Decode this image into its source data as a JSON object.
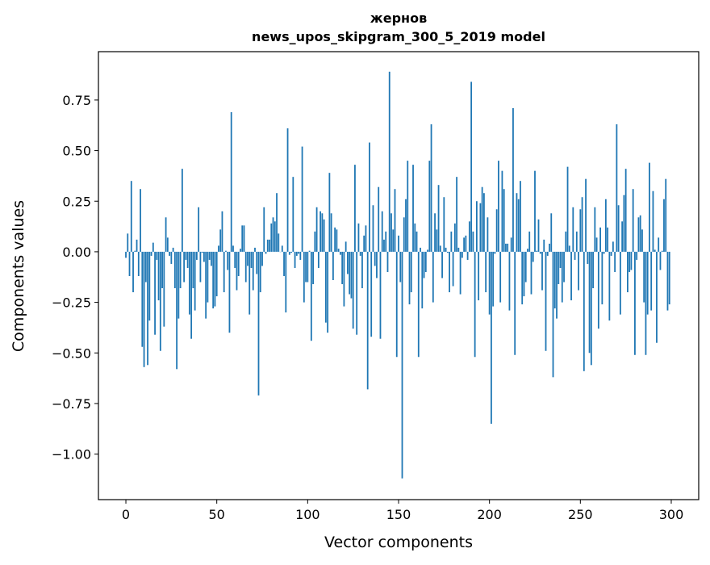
{
  "chart_data": {
    "type": "bar",
    "title": "жернов",
    "subtitle": "news_upos_skipgram_300_5_2019 model",
    "xlabel": "Vector components",
    "ylabel": "Components values",
    "xlim": [
      -15.1,
      315.1
    ],
    "ylim": [
      -1.225,
      0.989
    ],
    "xticks": [
      0,
      50,
      100,
      150,
      200,
      250,
      300
    ],
    "xtick_labels": [
      "0",
      "50",
      "100",
      "150",
      "200",
      "250",
      "300"
    ],
    "yticks": [
      0.75,
      0.5,
      0.25,
      0,
      -0.25,
      -0.5,
      -0.75,
      -1.0
    ],
    "ytick_labels": [
      "0.75",
      "0.50",
      "0.25",
      "0.00",
      "−0.25",
      "−0.50",
      "−0.75",
      "−1.00"
    ],
    "grid": false,
    "bar_color": "#1f77b4",
    "bar_width": 0.8,
    "values": [
      -0.03,
      0.09,
      -0.12,
      0.35,
      -0.2,
      0.005,
      0.06,
      -0.12,
      0.31,
      -0.47,
      -0.57,
      -0.15,
      -0.56,
      -0.34,
      -0.02,
      0.045,
      -0.41,
      -0.04,
      -0.24,
      -0.49,
      -0.18,
      -0.37,
      0.17,
      0.07,
      -0.02,
      -0.06,
      0.02,
      -0.18,
      -0.58,
      -0.33,
      -0.18,
      0.41,
      -0.15,
      -0.04,
      -0.08,
      -0.31,
      -0.43,
      -0.18,
      -0.29,
      -0.04,
      0.22,
      -0.15,
      -0.005,
      -0.05,
      -0.33,
      -0.25,
      -0.04,
      -0.07,
      -0.28,
      -0.27,
      -0.22,
      0.03,
      0.11,
      0.2,
      -0.2,
      0.005,
      -0.09,
      -0.4,
      0.69,
      0.03,
      -0.08,
      -0.19,
      -0.12,
      0.015,
      0.13,
      0.13,
      -0.15,
      -0.07,
      -0.31,
      -0.08,
      -0.19,
      0.02,
      -0.11,
      -0.71,
      -0.2,
      -0.07,
      0.22,
      -0.01,
      0.06,
      0.06,
      0.14,
      0.17,
      0.15,
      0.29,
      0.09,
      0,
      0.03,
      -0.12,
      -0.3,
      0.61,
      -0.015,
      -0.005,
      0.37,
      -0.08,
      -0.02,
      -0.01,
      -0.04,
      0.52,
      -0.25,
      -0.15,
      -0.15,
      0.005,
      -0.44,
      -0.16,
      0.1,
      0.22,
      -0.08,
      0.2,
      0.19,
      0.16,
      -0.35,
      -0.4,
      0.39,
      0.19,
      -0.14,
      0.12,
      0.11,
      0.015,
      -0.015,
      -0.16,
      -0.27,
      0.05,
      -0.11,
      -0.21,
      -0.23,
      -0.38,
      0.43,
      -0.41,
      0.14,
      -0.02,
      -0.18,
      0.08,
      0.13,
      -0.68,
      0.54,
      -0.42,
      0.23,
      -0.07,
      -0.13,
      0.32,
      -0.43,
      0.2,
      0.06,
      0.1,
      -0.1,
      0.89,
      0.19,
      0.11,
      0.31,
      -0.52,
      0.08,
      -0.15,
      -1.12,
      0.17,
      0.26,
      0.45,
      -0.26,
      -0.2,
      0.43,
      0.14,
      0.1,
      -0.52,
      0.02,
      -0.28,
      -0.13,
      -0.1,
      0.01,
      0.45,
      0.63,
      -0.25,
      0.19,
      0.11,
      0.33,
      0.03,
      -0.13,
      0.27,
      0.02,
      -0.005,
      -0.2,
      0.1,
      -0.17,
      0.14,
      0.37,
      0.02,
      -0.21,
      -0.03,
      0.07,
      0.08,
      -0.04,
      0.15,
      0.84,
      0.1,
      -0.52,
      0.25,
      -0.24,
      0.24,
      0.32,
      0.29,
      -0.2,
      0.17,
      -0.31,
      -0.85,
      -0.27,
      -0.01,
      0.21,
      0.45,
      -0.25,
      0.4,
      0.31,
      0.04,
      0.04,
      -0.29,
      0.07,
      0.71,
      -0.51,
      0.29,
      0.26,
      0.35,
      -0.26,
      -0.22,
      -0.15,
      0.015,
      0.1,
      -0.21,
      -0.05,
      0.4,
      0.005,
      0.16,
      -0.01,
      -0.19,
      0.06,
      -0.49,
      -0.02,
      0.04,
      0.19,
      -0.62,
      -0.28,
      -0.33,
      -0.16,
      -0.08,
      -0.25,
      -0.15,
      0.1,
      0.42,
      0.03,
      -0.24,
      0.22,
      -0.04,
      0.1,
      -0.19,
      0.21,
      0.27,
      -0.59,
      0.36,
      -0.06,
      -0.5,
      -0.56,
      -0.18,
      0.22,
      0.07,
      -0.38,
      0.12,
      -0.26,
      -0.01,
      0.26,
      0.12,
      -0.34,
      -0.02,
      0.05,
      -0.1,
      0.63,
      0.23,
      -0.31,
      0.15,
      0.28,
      0.41,
      -0.2,
      -0.1,
      -0.09,
      0.31,
      -0.51,
      -0.04,
      0.17,
      0.18,
      0.11,
      -0.25,
      -0.51,
      -0.31,
      0.44,
      -0.29,
      0.3,
      0.01,
      -0.45,
      0.07,
      -0.09,
      0.005,
      0.26,
      0.36,
      -0.29,
      -0.26
    ]
  }
}
